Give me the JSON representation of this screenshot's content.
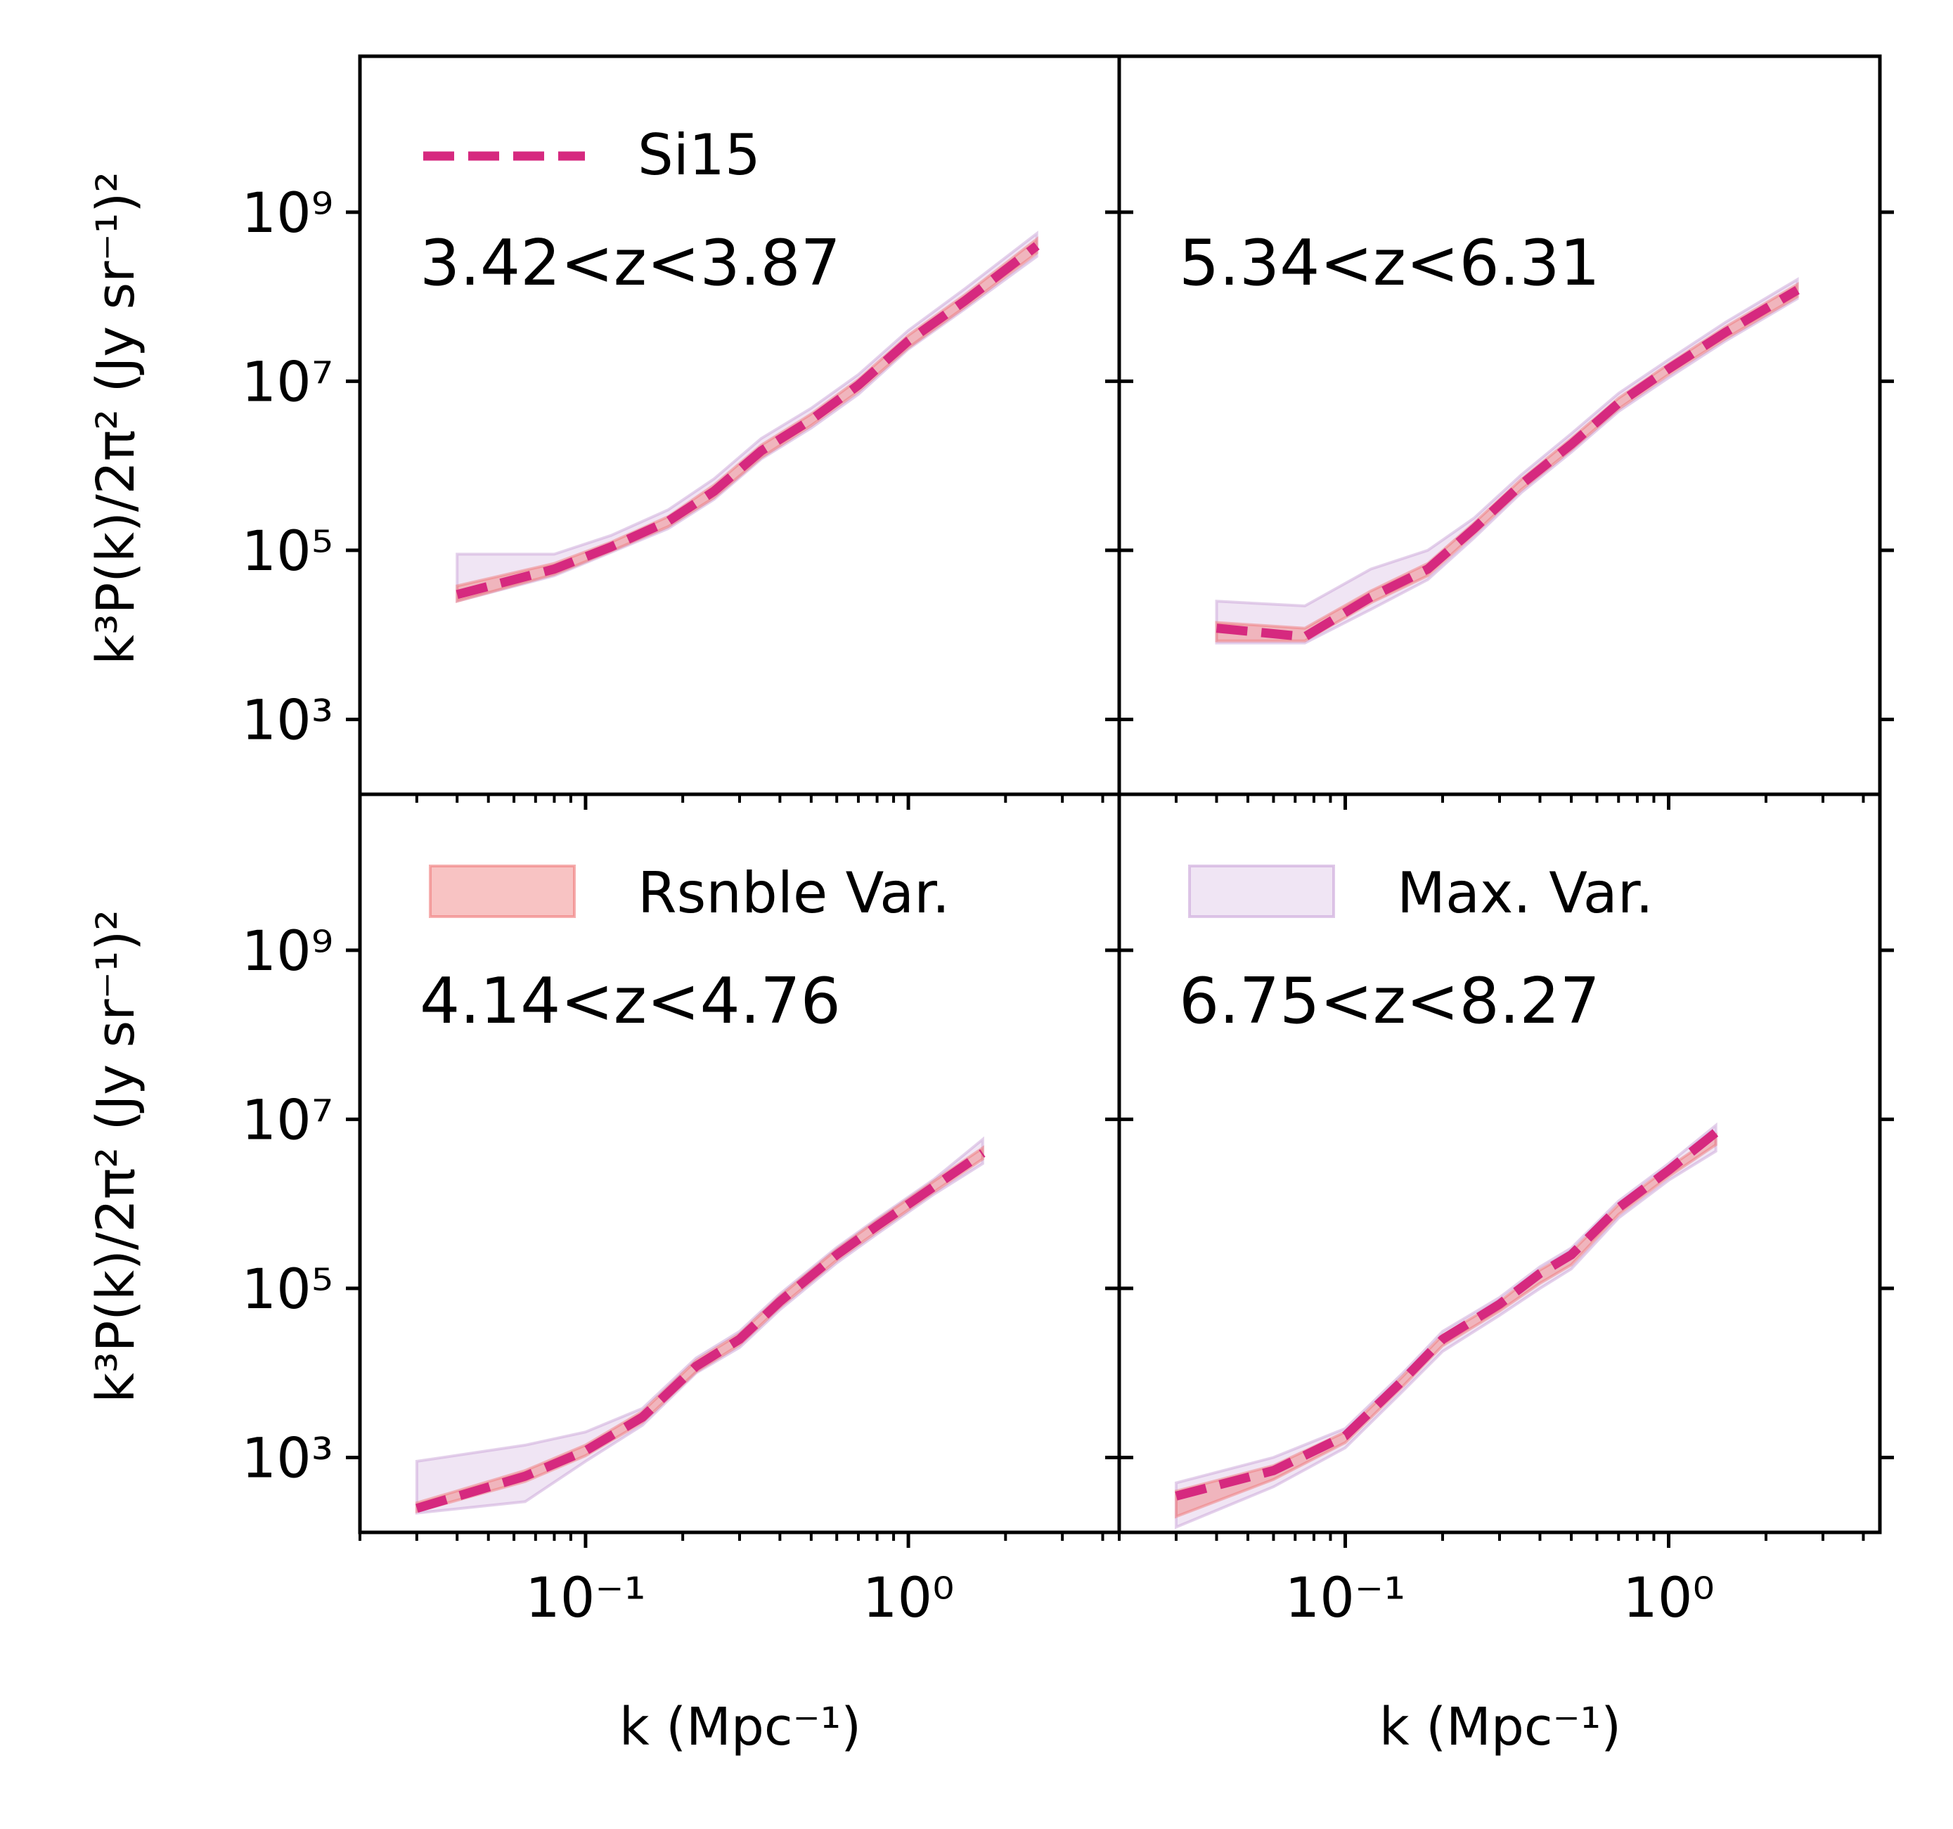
{
  "chart_data": {
    "type": "line",
    "layout": "2x2 grid, shared axes, log-log",
    "xlabel": "k (Mpc⁻¹)",
    "ylabel": "k³P(k)/2π² (Jy sr⁻¹)²",
    "xlim": [
      0.02,
      4.5
    ],
    "ylim": [
      130,
      70000000000
    ],
    "xscale": "log",
    "yscale": "log",
    "x_ticks": [
      {
        "value": 0.1,
        "label": "10⁻¹"
      },
      {
        "value": 1,
        "label": "10⁰"
      }
    ],
    "y_ticks": [
      {
        "value": 1000,
        "label": "10³"
      },
      {
        "value": 100000,
        "label": "10⁵"
      },
      {
        "value": 10000000,
        "label": "10⁷"
      },
      {
        "value": 1000000000,
        "label": "10⁹"
      }
    ],
    "colors": {
      "line": "#d6297f",
      "rsnble": "#f07a7a",
      "maxvar": "#c9a3d8"
    },
    "legend": {
      "line": "Si15",
      "rsnble": "Rsnble Var.",
      "maxvar": "Max. Var."
    },
    "panels": [
      {
        "id": "top-left",
        "zrange": "3.42<z<3.87",
        "legend_entry": "line",
        "k": [
          0.04,
          0.08,
          0.12,
          0.18,
          0.25,
          0.35,
          0.5,
          0.7,
          1.0,
          1.5,
          2.5
        ],
        "si15": [
          30000,
          60000,
          110000,
          220000,
          500000,
          1500000,
          3500000,
          9000000,
          30000000,
          90000000,
          400000000
        ],
        "rsnble_lo": [
          25000,
          52000,
          98000,
          190000,
          420000,
          1250000,
          3000000,
          7600000,
          25000000,
          76000000,
          330000000
        ],
        "rsnble_hi": [
          38000,
          70000,
          125000,
          250000,
          590000,
          1750000,
          4100000,
          10500000,
          35000000,
          106000000,
          480000000
        ],
        "maxvar_lo": [
          25000,
          50000,
          95000,
          180000,
          400000,
          1200000,
          2800000,
          7000000,
          24000000,
          72000000,
          300000000
        ],
        "maxvar_hi": [
          90000,
          90000,
          150000,
          300000,
          700000,
          2100000,
          4800000,
          12000000,
          40000000,
          125000000,
          560000000
        ]
      },
      {
        "id": "top-right",
        "zrange": "5.34<z<6.31",
        "legend_entry": null,
        "k": [
          0.04,
          0.075,
          0.12,
          0.18,
          0.25,
          0.35,
          0.5,
          0.7,
          1.0,
          1.5,
          2.5
        ],
        "si15": [
          12000,
          9500,
          28000,
          60000,
          180000,
          600000,
          1800000,
          5500000,
          14000000,
          38000000,
          120000000
        ],
        "rsnble_lo": [
          8500,
          8500,
          24000,
          50000,
          155000,
          520000,
          1550000,
          4700000,
          12000000,
          32000000,
          100000000
        ],
        "rsnble_hi": [
          14000,
          12000,
          33000,
          70000,
          210000,
          690000,
          2100000,
          6300000,
          16000000,
          44000000,
          140000000
        ],
        "maxvar_lo": [
          8000,
          8000,
          20000,
          45000,
          140000,
          480000,
          1450000,
          4400000,
          11000000,
          30000000,
          95000000
        ],
        "maxvar_hi": [
          25000,
          22000,
          60000,
          100000,
          240000,
          780000,
          2400000,
          7200000,
          18000000,
          50000000,
          160000000
        ]
      },
      {
        "id": "bottom-left",
        "zrange": "4.14<z<4.76",
        "legend_entry": "rsnble",
        "k": [
          0.03,
          0.065,
          0.1,
          0.15,
          0.22,
          0.3,
          0.4,
          0.6,
          0.8,
          1.2,
          1.7
        ],
        "si15": [
          250,
          600,
          1200,
          3000,
          12000,
          25000,
          70000,
          250000,
          550000,
          1600000,
          4000000
        ],
        "rsnble_lo": [
          230,
          520,
          1050,
          2600,
          10300,
          21500,
          60000,
          215000,
          470000,
          1380000,
          3400000
        ],
        "rsnble_hi": [
          290,
          700,
          1400,
          3500,
          14000,
          29000,
          81000,
          290000,
          640000,
          1860000,
          4600000
        ],
        "maxvar_lo": [
          220,
          300,
          900,
          2400,
          10000,
          20000,
          56000,
          200000,
          440000,
          1300000,
          3000000
        ],
        "maxvar_hi": [
          900,
          1400,
          2000,
          3800,
          15000,
          31000,
          86000,
          305000,
          670000,
          1950000,
          5800000
        ]
      },
      {
        "id": "bottom-right",
        "zrange": "6.75<z<8.27",
        "legend_entry": "maxvar",
        "k": [
          0.03,
          0.06,
          0.1,
          0.15,
          0.2,
          0.3,
          0.4,
          0.5,
          0.7,
          1.0,
          1.4
        ],
        "si15": [
          350,
          700,
          1800,
          8000,
          25000,
          65000,
          150000,
          250000,
          900000,
          2500000,
          7000000
        ],
        "rsnble_lo": [
          200,
          550,
          1500,
          6800,
          21000,
          54000,
          115000,
          190000,
          750000,
          2100000,
          5000000
        ],
        "rsnble_hi": [
          400,
          800,
          2000,
          9000,
          28000,
          70000,
          165000,
          270000,
          980000,
          2700000,
          6500000
        ],
        "maxvar_lo": [
          150,
          450,
          1300,
          6000,
          18000,
          48000,
          100000,
          170000,
          680000,
          1900000,
          4200000
        ],
        "maxvar_hi": [
          500,
          1000,
          2200,
          9800,
          31000,
          78000,
          180000,
          300000,
          1080000,
          3000000,
          8500000
        ]
      }
    ]
  }
}
